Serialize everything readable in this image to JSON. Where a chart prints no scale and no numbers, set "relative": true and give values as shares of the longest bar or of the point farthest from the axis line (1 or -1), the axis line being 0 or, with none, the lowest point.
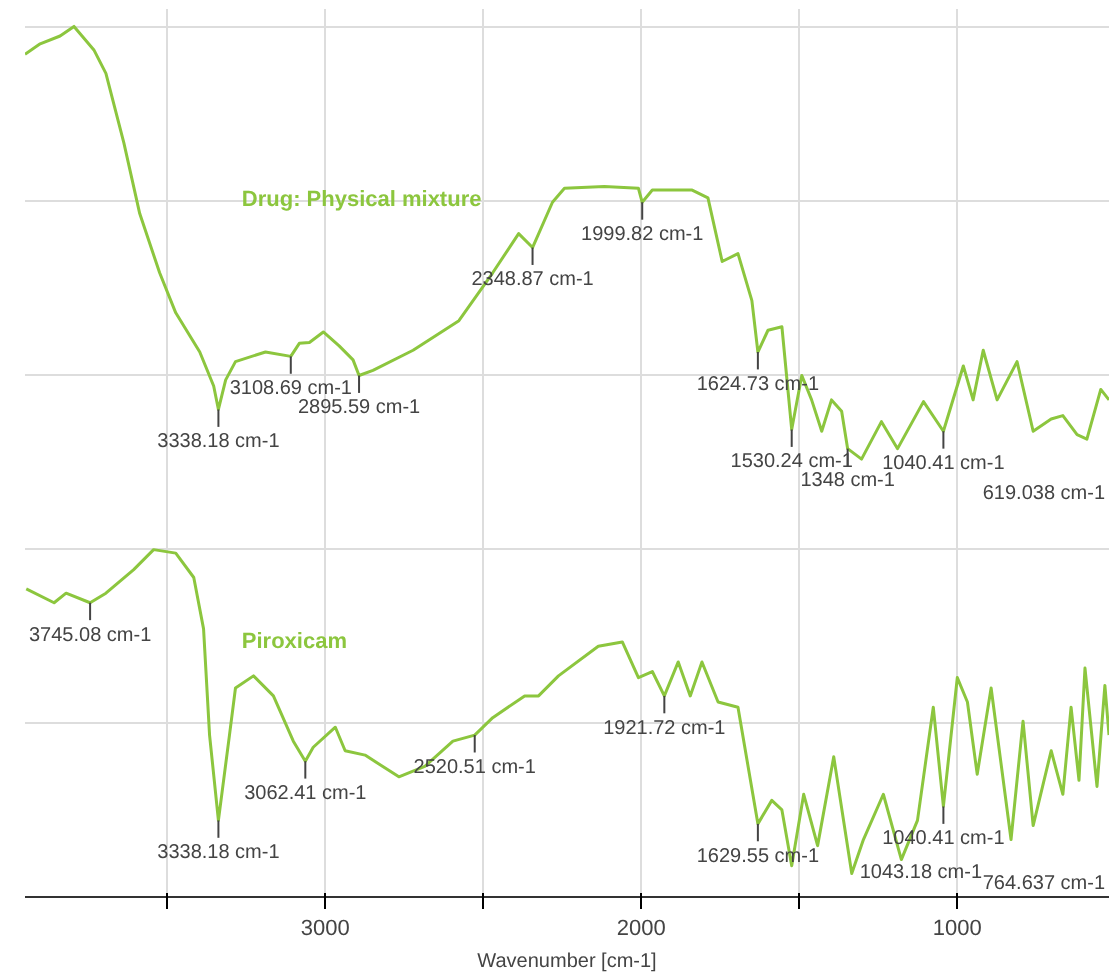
{
  "chart_data": {
    "type": "line",
    "relative": true,
    "xlabel": "Wavenumber [cm-1]",
    "xlim": [
      3950,
      520
    ],
    "xticks": [
      {
        "value": 3500,
        "label": null
      },
      3000,
      {
        "value": 2500,
        "label": null
      },
      2000,
      {
        "value": 1500,
        "label": null
      },
      1000
    ],
    "grid": true,
    "marker": "none",
    "line_style": "solid",
    "series": [
      {
        "name": "Drug: Physical mixture",
        "color": "#8cc63e",
        "x": [
          3950,
          3902,
          3839,
          3795,
          3732,
          3694,
          3637,
          3587,
          3524,
          3473,
          3397,
          3353,
          3338,
          3315,
          3284,
          3189,
          3109,
          3082,
          3050,
          3006,
          2956,
          2912,
          2893,
          2849,
          2722,
          2577,
          2470,
          2388,
          2344,
          2281,
          2243,
          2117,
          2009,
          1997,
          1965,
          1839,
          1789,
          1744,
          1694,
          1650,
          1631,
          1599,
          1555,
          1524,
          1492,
          1461,
          1429,
          1398,
          1366,
          1347,
          1303,
          1240,
          1189,
          1107,
          1044,
          981,
          950,
          918,
          874,
          811,
          760,
          703,
          666,
          621,
          590,
          546,
          520
        ],
        "values": [
          0.968,
          0.98,
          0.989,
          1.0,
          0.973,
          0.946,
          0.866,
          0.785,
          0.717,
          0.671,
          0.626,
          0.587,
          0.56,
          0.594,
          0.615,
          0.626,
          0.621,
          0.636,
          0.637,
          0.649,
          0.633,
          0.617,
          0.599,
          0.605,
          0.628,
          0.662,
          0.717,
          0.762,
          0.746,
          0.798,
          0.814,
          0.816,
          0.814,
          0.798,
          0.812,
          0.812,
          0.803,
          0.73,
          0.739,
          0.685,
          0.626,
          0.651,
          0.655,
          0.537,
          0.599,
          0.571,
          0.535,
          0.571,
          0.558,
          0.515,
          0.503,
          0.546,
          0.515,
          0.569,
          0.535,
          0.61,
          0.571,
          0.628,
          0.571,
          0.615,
          0.535,
          0.549,
          0.553,
          0.531,
          0.526,
          0.583,
          0.571
        ]
      },
      {
        "name": "Piroxicam",
        "color": "#8cc63e",
        "x": [
          3946,
          3858,
          3820,
          3744,
          3694,
          3606,
          3543,
          3473,
          3416,
          3385,
          3366,
          3338,
          3303,
          3284,
          3227,
          3164,
          3101,
          3063,
          3038,
          2968,
          2937,
          2874,
          2767,
          2685,
          2596,
          2527,
          2470,
          2369,
          2325,
          2262,
          2136,
          2060,
          2009,
          1965,
          1927,
          1883,
          1845,
          1808,
          1757,
          1694,
          1631,
          1587,
          1555,
          1524,
          1486,
          1442,
          1391,
          1334,
          1297,
          1234,
          1177,
          1126,
          1076,
          1044,
          1000,
          968,
          937,
          893,
          830,
          792,
          760,
          703,
          666,
          640,
          615,
          596,
          558,
          533,
          520
        ],
        "values": [
          0.354,
          0.338,
          0.349,
          0.338,
          0.349,
          0.376,
          0.399,
          0.395,
          0.367,
          0.308,
          0.186,
          0.088,
          0.186,
          0.24,
          0.254,
          0.231,
          0.179,
          0.156,
          0.172,
          0.195,
          0.168,
          0.163,
          0.138,
          0.15,
          0.179,
          0.186,
          0.206,
          0.231,
          0.231,
          0.254,
          0.288,
          0.293,
          0.252,
          0.259,
          0.231,
          0.27,
          0.231,
          0.27,
          0.224,
          0.218,
          0.084,
          0.111,
          0.1,
          0.036,
          0.118,
          0.059,
          0.161,
          0.027,
          0.066,
          0.118,
          0.043,
          0.088,
          0.218,
          0.104,
          0.252,
          0.224,
          0.141,
          0.24,
          0.066,
          0.202,
          0.082,
          0.168,
          0.118,
          0.218,
          0.134,
          0.263,
          0.127,
          0.243,
          0.186
        ]
      }
    ],
    "annotations": [
      {
        "text": "3338.18 cm-1",
        "x": 3338,
        "y": 0.56
      },
      {
        "text": "3108.69 cm-1",
        "x": 3109,
        "y": 0.621
      },
      {
        "text": "2895.59 cm-1",
        "x": 2893,
        "y": 0.599
      },
      {
        "text": "2348.87 cm-1",
        "x": 2344,
        "y": 0.746
      },
      {
        "text": "1999.82 cm-1",
        "x": 1997,
        "y": 0.798
      },
      {
        "text": "1624.73 cm-1",
        "x": 1631,
        "y": 0.626
      },
      {
        "text": "1530.24 cm-1",
        "x": 1524,
        "y": 0.537
      },
      {
        "text": "1348 cm-1",
        "x": 1347,
        "y": 0.515
      },
      {
        "text": "1040.41 cm-1",
        "x": 1044,
        "y": 0.535
      },
      {
        "text": "619.038 cm-1",
        "x": 621,
        "y": 0.531
      },
      {
        "text": "3745.08 cm-1",
        "x": 3744,
        "y": 0.338
      },
      {
        "text": "3338.18 cm-1",
        "x": 3338,
        "y": 0.088
      },
      {
        "text": "3062.41 cm-1",
        "x": 3063,
        "y": 0.156
      },
      {
        "text": "2520.51 cm-1",
        "x": 2527,
        "y": 0.186
      },
      {
        "text": "1921.72 cm-1",
        "x": 1927,
        "y": 0.231
      },
      {
        "text": "1629.55 cm-1",
        "x": 1631,
        "y": 0.084
      },
      {
        "text": "1043.18 cm-1",
        "x": 1334,
        "y": 0.027
      },
      {
        "text": "1040.41 cm-1",
        "x": 1044,
        "y": 0.104
      },
      {
        "text": "764.637 cm-1",
        "x": 760,
        "y": 0.082
      }
    ]
  }
}
